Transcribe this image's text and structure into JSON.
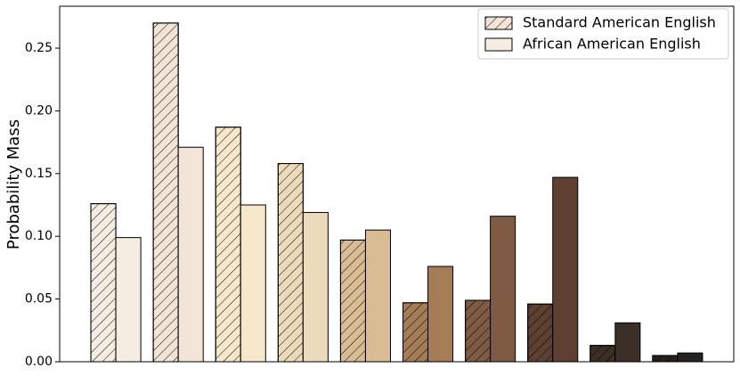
{
  "chart_data": {
    "type": "bar",
    "ylabel": "Probability Mass",
    "categories": [
      null,
      null,
      null,
      null,
      null,
      null,
      null,
      null,
      null,
      null
    ],
    "colors": [
      "#f5ece2",
      "#f2e4d6",
      "#f7e8cc",
      "#ecdbbb",
      "#d9bc94",
      "#a47c55",
      "#7f5b43",
      "#5e4032",
      "#3a3028",
      "#252220"
    ],
    "series": [
      {
        "name": "Standard American English",
        "color": "#f2e4d6",
        "hatch": true,
        "values": [
          0.126,
          0.27,
          0.187,
          0.158,
          0.097,
          0.047,
          0.049,
          0.046,
          0.013,
          0.005
        ]
      },
      {
        "name": "African American English",
        "color": "#f5ece2",
        "hatch": false,
        "values": [
          0.099,
          0.171,
          0.125,
          0.119,
          0.105,
          0.076,
          0.116,
          0.147,
          0.031,
          0.007
        ]
      }
    ],
    "ylim": [
      0,
      0.2834
    ],
    "yticks": [
      {
        "value": 0,
        "label": "0.00"
      },
      {
        "value": 0.05,
        "label": "0.05"
      },
      {
        "value": 0.1,
        "label": "0.10"
      },
      {
        "value": 0.15,
        "label": "0.15"
      },
      {
        "value": 0.2,
        "label": "0.20"
      },
      {
        "value": 0.25,
        "label": "0.25"
      }
    ],
    "legend": "upper-right"
  }
}
